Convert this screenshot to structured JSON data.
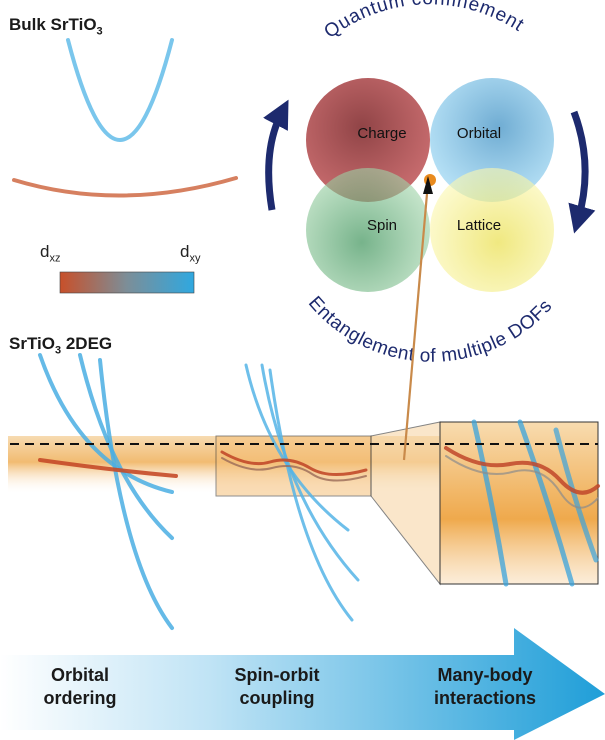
{
  "bulk": {
    "title_main": "Bulk SrTiO",
    "title_sub": "3",
    "colorbar_left_main": "d",
    "colorbar_left_sub": "xz",
    "colorbar_right_main": "d",
    "colorbar_right_sub": "xy"
  },
  "twodeg": {
    "title_main": "SrTiO",
    "title_sub": "3",
    "title_suffix": " 2DEG"
  },
  "dof": {
    "arc_top": "Quantum confinement",
    "arc_bottom": "Entanglement of multiple DOFs",
    "circles": [
      {
        "label": "Charge",
        "color": "#a0262c"
      },
      {
        "label": "Orbital",
        "color": "#2f9fd9"
      },
      {
        "label": "Spin",
        "color": "#3a9a55"
      },
      {
        "label": "Lattice",
        "color": "#efe54a"
      }
    ]
  },
  "stages": {
    "stage1_line1": "Orbital",
    "stage1_line2": "ordering",
    "stage2_line1": "Spin-orbit",
    "stage2_line2": "coupling",
    "stage3_line1": "Many-body",
    "stage3_line2": "interactions"
  },
  "colors": {
    "dxz": "#c8502a",
    "dxy": "#3fa7dd",
    "arrow_navy": "#1d2a6e",
    "fermi_glow": "#f2b96a"
  }
}
